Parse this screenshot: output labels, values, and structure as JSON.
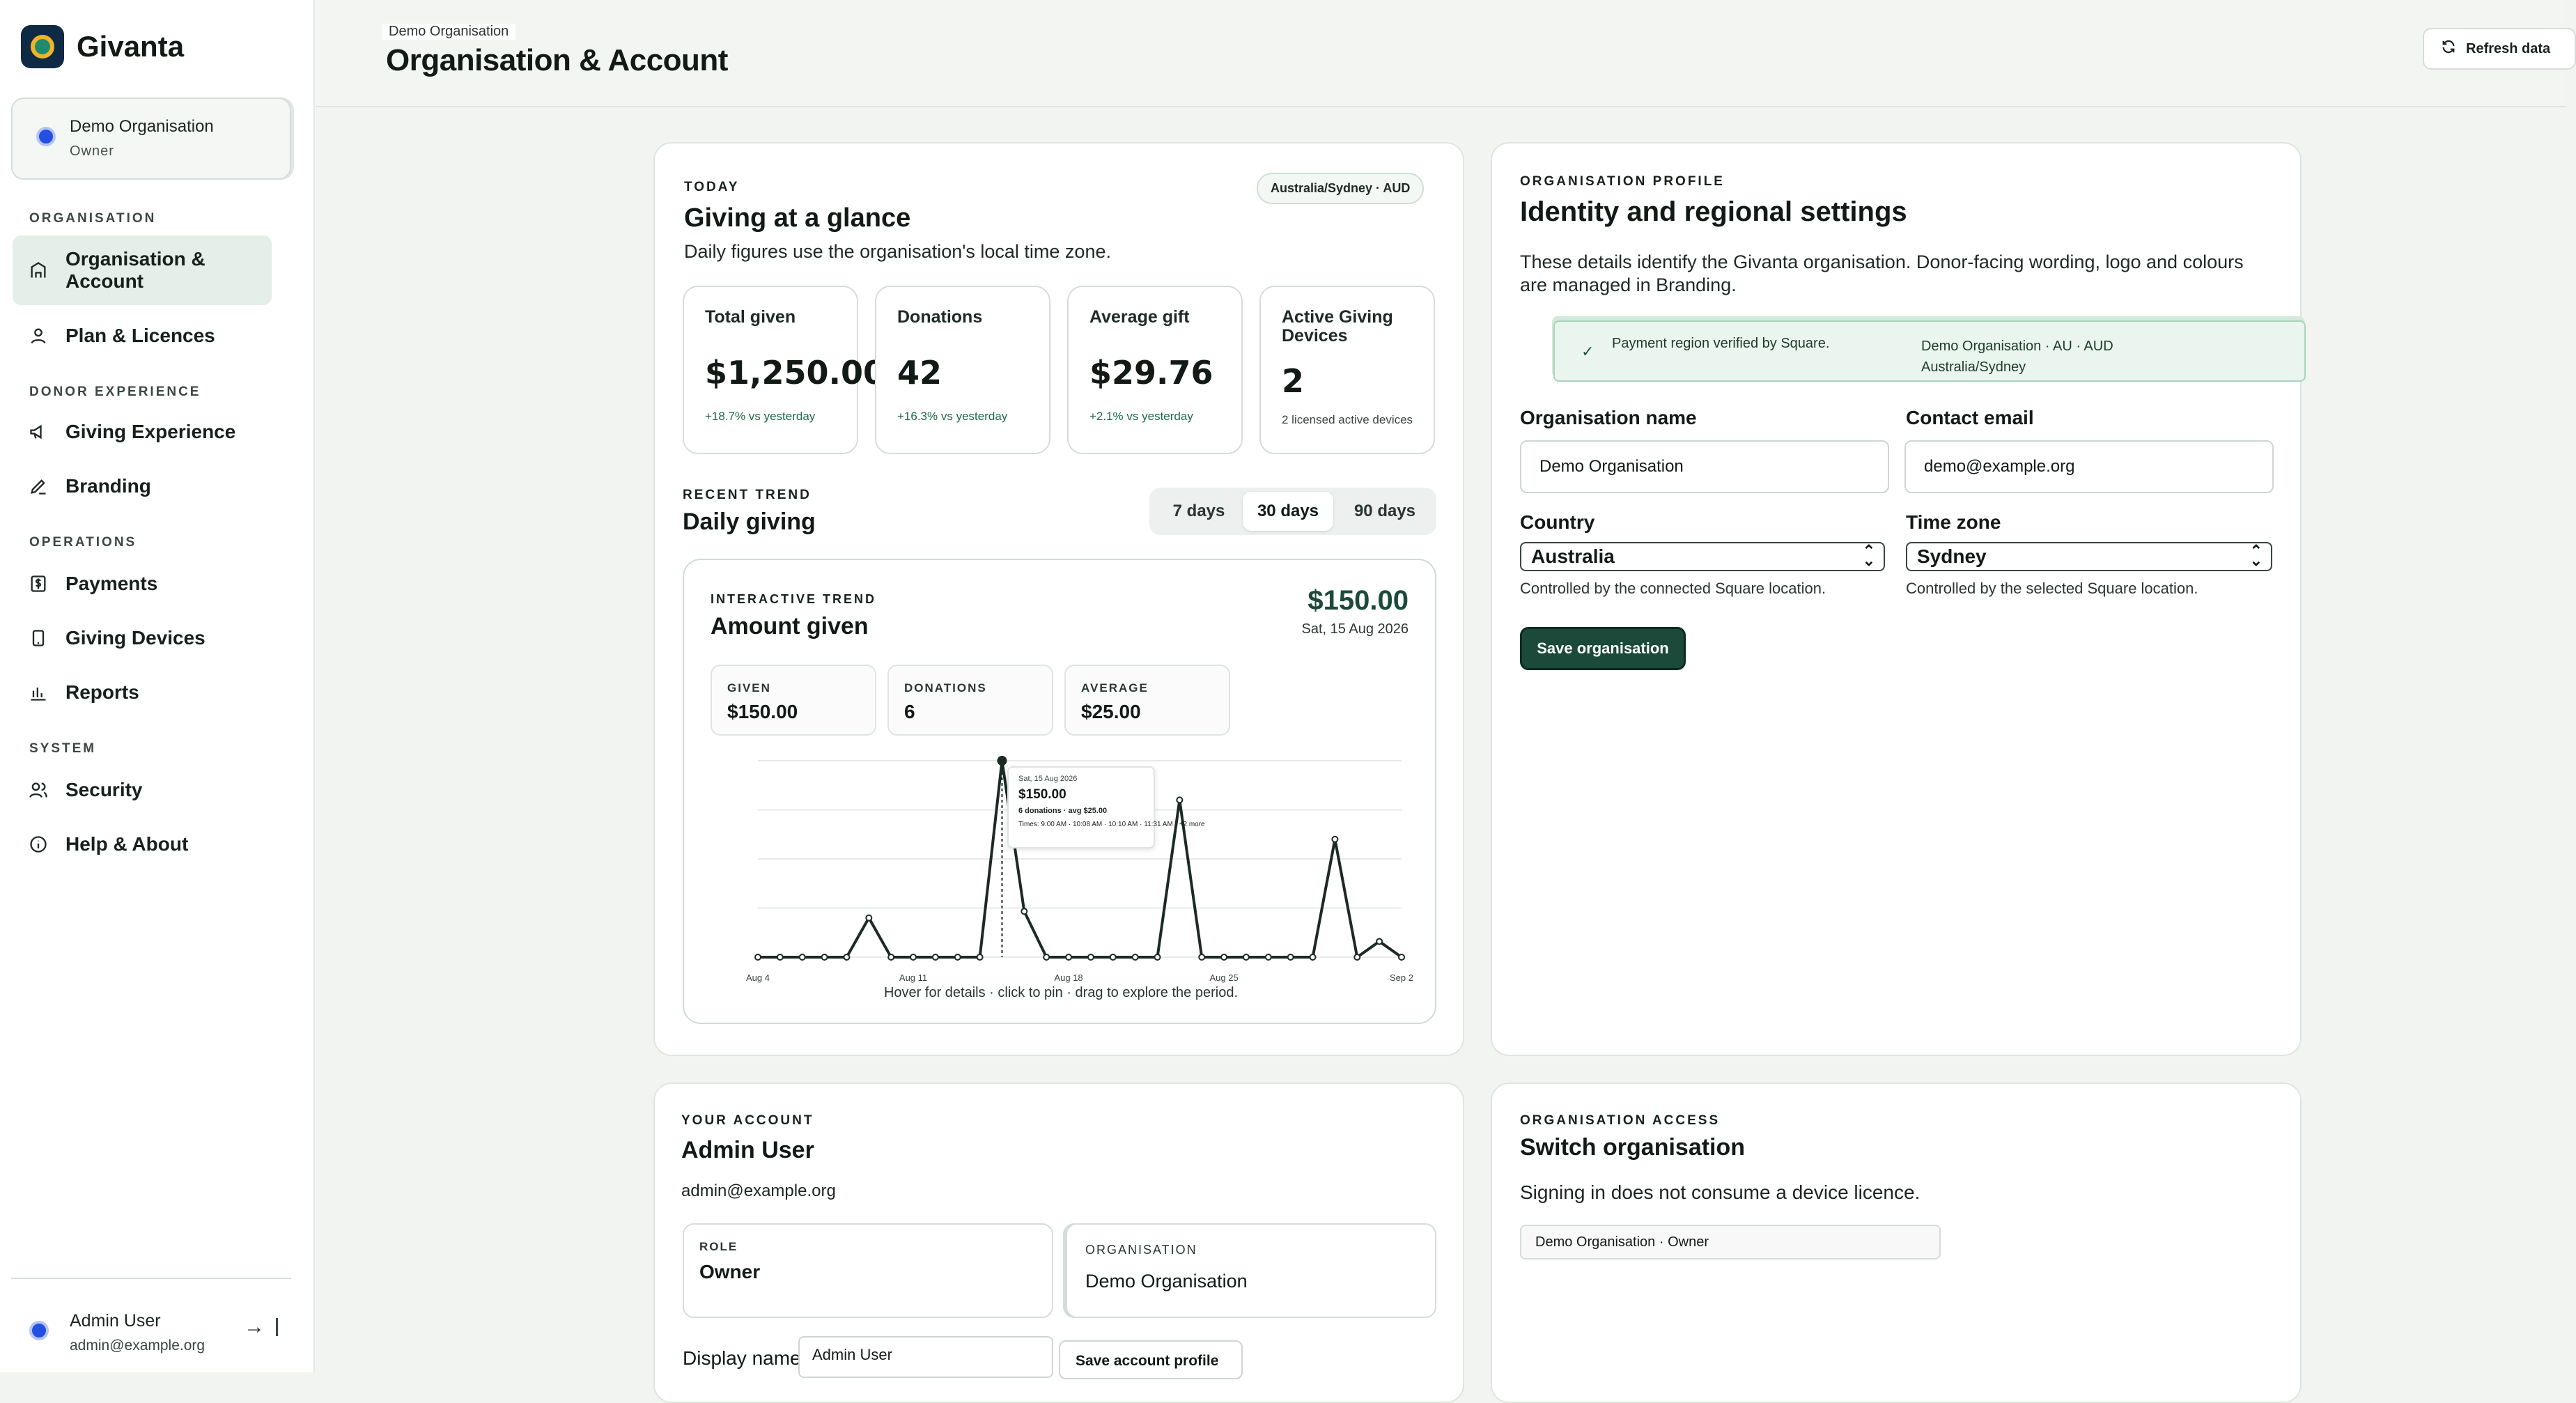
{
  "brand": {
    "name": "Givanta"
  },
  "org_switcher": {
    "name": "Demo Organisation",
    "role": "Owner"
  },
  "nav": {
    "sections": {
      "organisation": "ORGANISATION",
      "donor": "DONOR EXPERIENCE",
      "operations": "OPERATIONS",
      "system": "SYSTEM"
    },
    "items": {
      "org_account": "Organisation & Account",
      "plan": "Plan & Licences",
      "giving_experience": "Giving Experience",
      "branding": "Branding",
      "payments": "Payments",
      "devices": "Giving Devices",
      "reports": "Reports",
      "security": "Security",
      "help": "Help & About"
    }
  },
  "user": {
    "name": "Admin User",
    "email": "admin@example.org"
  },
  "header": {
    "breadcrumb": "Demo Organisation",
    "title": "Organisation & Account",
    "refresh_label": "Refresh data"
  },
  "glance": {
    "eyebrow": "TODAY",
    "title": "Giving at a glance",
    "subtitle": "Daily figures use the organisation's local time zone.",
    "locale_pill": "Australia/Sydney · AUD",
    "stats": [
      {
        "label": "Total given",
        "value": "$1,250.00",
        "delta": "+18.7% vs yesterday"
      },
      {
        "label": "Donations",
        "value": "42",
        "delta": "+16.3% vs yesterday"
      },
      {
        "label": "Average gift",
        "value": "$29.76",
        "delta": "+2.1% vs yesterday"
      },
      {
        "label": "Active Giving Devices",
        "value": "2",
        "note": "2 licensed active devices"
      }
    ],
    "trend_eyebrow": "RECENT TREND",
    "trend_title": "Daily giving",
    "ranges": [
      "7 days",
      "30 days",
      "90 days"
    ],
    "selected_range": "30 days"
  },
  "trend": {
    "eyebrow": "INTERACTIVE TREND",
    "title": "Amount given",
    "amount": "$150.00",
    "date": "Sat, 15 Aug 2026",
    "minis": [
      {
        "label": "GIVEN",
        "value": "$150.00"
      },
      {
        "label": "DONATIONS",
        "value": "6"
      },
      {
        "label": "AVERAGE",
        "value": "$25.00"
      }
    ],
    "tooltip": {
      "date": "Sat, 15 Aug 2026",
      "amount": "$150.00",
      "detail": "6 donations · avg $25.00",
      "times": "Times: 9:00 AM · 10:08 AM · 10:10 AM · 11:31 AM · +2 more"
    },
    "footer_hint": "Hover for details · click to pin · drag to explore the period."
  },
  "chart_data": {
    "type": "line",
    "x": [
      "Aug 4",
      "Aug 5",
      "Aug 6",
      "Aug 7",
      "Aug 8",
      "Aug 9",
      "Aug 10",
      "Aug 11",
      "Aug 12",
      "Aug 13",
      "Aug 14",
      "Aug 15",
      "Aug 16",
      "Aug 17",
      "Aug 18",
      "Aug 19",
      "Aug 20",
      "Aug 21",
      "Aug 22",
      "Aug 23",
      "Aug 24",
      "Aug 25",
      "Aug 26",
      "Aug 27",
      "Aug 28",
      "Aug 29",
      "Aug 30",
      "Aug 31",
      "Sep 1",
      "Sep 2"
    ],
    "series": [
      {
        "values": [
          0,
          0,
          0,
          0,
          0,
          30,
          0,
          0,
          0,
          0,
          0,
          150,
          35,
          0,
          0,
          0,
          0,
          0,
          0,
          120,
          0,
          0,
          0,
          0,
          0,
          0,
          90,
          0,
          12,
          0
        ]
      }
    ],
    "x_tick_labels": [
      "Aug 4",
      "Aug 11",
      "Aug 18",
      "Aug 25",
      "Sep 2"
    ],
    "ylim": [
      0,
      150
    ],
    "highlight_index": 11,
    "grid": true,
    "line_color": "#1c2a24"
  },
  "profile": {
    "eyebrow": "ORGANISATION PROFILE",
    "title": "Identity and regional settings",
    "description": "These details identify the Givanta organisation. Donor-facing wording, logo and colours are managed in Branding.",
    "verified_msg": "Payment region verified by Square.",
    "verified_meta_1": "Demo Organisation · AU · AUD",
    "verified_meta_2": "Australia/Sydney",
    "org_name_label": "Organisation name",
    "org_name_value": "Demo Organisation",
    "email_label": "Contact email",
    "email_value": "demo@example.org",
    "country_label": "Country",
    "country_value": "Australia",
    "country_hint": "Controlled by the connected Square location.",
    "timezone_label": "Time zone",
    "timezone_value": "Sydney",
    "timezone_hint": "Controlled by the selected Square location.",
    "save_label": "Save organisation"
  },
  "account": {
    "eyebrow": "YOUR ACCOUNT",
    "name": "Admin User",
    "email": "admin@example.org",
    "role_label": "ROLE",
    "role_value": "Owner",
    "org_label": "ORGANISATION",
    "org_value": "Demo Organisation",
    "display_name_label": "Display name",
    "display_name_value": "Admin User",
    "save_label": "Save account profile"
  },
  "access": {
    "eyebrow": "ORGANISATION ACCESS",
    "title": "Switch organisation",
    "subtitle": "Signing in does not consume a device licence.",
    "option": "Demo Organisation · Owner"
  },
  "colors": {
    "accent": "#1b4a3a",
    "positive": "#1c6b45",
    "avatar": "#2350e0"
  },
  "icons": [
    "building-icon",
    "user-icon",
    "megaphone-icon",
    "pen-icon",
    "dollar-icon",
    "tablet-icon",
    "bar-chart-icon",
    "users-icon",
    "info-icon",
    "refresh-icon",
    "logout-icon",
    "check-icon"
  ]
}
